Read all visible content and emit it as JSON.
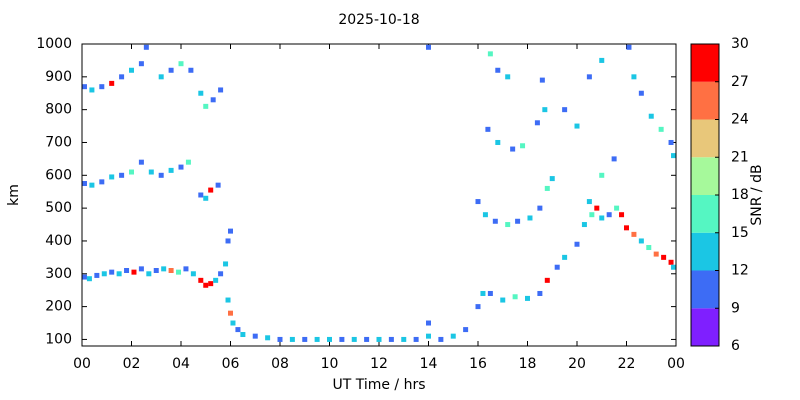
{
  "chart_data": {
    "type": "scatter",
    "title": "2025-10-18",
    "xlabel": "UT Time / hrs",
    "ylabel": "km",
    "xlim": [
      0,
      24
    ],
    "ylim": [
      80,
      1000
    ],
    "xticks": [
      {
        "value": 0,
        "label": "00"
      },
      {
        "value": 2,
        "label": "02"
      },
      {
        "value": 4,
        "label": "04"
      },
      {
        "value": 6,
        "label": "06"
      },
      {
        "value": 8,
        "label": "08"
      },
      10,
      12,
      14,
      16,
      18,
      20,
      22,
      {
        "value": 24,
        "label": "00"
      }
    ],
    "yticks": [
      100,
      200,
      300,
      400,
      500,
      600,
      700,
      800,
      900,
      1000
    ],
    "x": [
      0.1,
      0.3,
      0.6,
      0.9,
      1.2,
      1.5,
      1.8,
      2.1,
      2.4,
      2.7,
      3.0,
      3.3,
      3.6,
      3.9,
      4.2,
      4.5,
      4.8,
      5.0,
      5.2,
      5.4,
      5.6,
      5.8,
      5.9,
      6.0,
      5.9,
      6.0,
      6.1,
      6.3,
      6.5,
      7.0,
      7.5,
      8.0,
      8.5,
      9.0,
      9.5,
      10.0,
      10.5,
      11.0,
      11.5,
      12.0,
      12.5,
      13.0,
      13.5,
      14.0,
      14.0,
      14.5,
      15.0,
      15.5,
      16.0,
      16.2,
      16.5,
      17.0,
      17.5,
      18.0,
      18.5,
      18.8,
      19.2,
      19.5,
      20.0,
      20.3,
      20.6,
      20.8,
      21.0,
      21.3,
      21.6,
      21.8,
      22.0,
      22.3,
      22.6,
      22.9,
      23.2,
      23.5,
      23.8,
      23.9,
      0.1,
      0.4,
      0.8,
      1.2,
      1.6,
      2.0,
      2.4,
      2.8,
      3.2,
      3.6,
      4.0,
      4.3,
      4.8,
      5.0,
      5.2,
      5.5,
      0.1,
      0.4,
      0.8,
      1.2,
      1.6,
      2.0,
      2.4,
      2.6,
      3.2,
      3.6,
      4.0,
      4.4,
      4.8,
      5.0,
      5.3,
      5.6,
      16.0,
      16.3,
      16.7,
      17.2,
      17.6,
      18.1,
      18.5,
      18.8,
      19.0,
      16.4,
      16.8,
      17.4,
      17.8,
      18.4,
      18.7,
      16.5,
      16.8,
      17.2,
      18.6,
      19.5,
      20.0,
      20.5,
      21.0,
      21.5,
      21.0,
      20.5,
      22.1,
      22.3,
      22.6,
      23.0,
      23.4,
      23.8,
      23.9,
      14.0
    ],
    "y": [
      290,
      285,
      295,
      300,
      305,
      300,
      310,
      305,
      315,
      300,
      310,
      315,
      310,
      305,
      315,
      300,
      280,
      265,
      270,
      280,
      300,
      330,
      400,
      430,
      220,
      180,
      150,
      130,
      115,
      110,
      105,
      100,
      100,
      100,
      100,
      100,
      100,
      100,
      100,
      100,
      100,
      100,
      100,
      110,
      150,
      100,
      110,
      130,
      200,
      240,
      240,
      220,
      230,
      225,
      240,
      280,
      320,
      350,
      390,
      450,
      480,
      500,
      470,
      480,
      500,
      480,
      440,
      420,
      400,
      380,
      360,
      350,
      335,
      320,
      575,
      570,
      580,
      595,
      600,
      610,
      640,
      610,
      600,
      615,
      625,
      640,
      540,
      530,
      555,
      570,
      870,
      860,
      870,
      880,
      900,
      920,
      940,
      990,
      900,
      920,
      940,
      920,
      850,
      810,
      830,
      860,
      520,
      480,
      460,
      450,
      460,
      470,
      500,
      560,
      590,
      740,
      700,
      680,
      690,
      760,
      800,
      970,
      920,
      900,
      890,
      800,
      750,
      900,
      950,
      650,
      600,
      520,
      990,
      900,
      850,
      780,
      740,
      700,
      660,
      990
    ],
    "values": [
      10,
      13,
      10,
      12,
      10,
      14,
      10,
      27,
      10,
      13,
      10,
      12,
      24,
      16,
      10,
      13,
      27,
      28,
      27,
      13,
      10,
      14,
      10,
      10,
      13,
      24,
      14,
      10,
      13,
      10,
      13,
      10,
      13,
      10,
      12,
      13,
      10,
      14,
      10,
      13,
      10,
      12,
      10,
      13,
      10,
      10,
      13,
      10,
      10,
      13,
      10,
      13,
      16,
      13,
      10,
      27,
      10,
      13,
      10,
      13,
      16,
      27,
      13,
      10,
      16,
      28,
      27,
      24,
      13,
      16,
      24,
      27,
      28,
      13,
      10,
      13,
      10,
      13,
      10,
      16,
      10,
      13,
      10,
      13,
      10,
      16,
      10,
      13,
      27,
      10,
      10,
      13,
      10,
      27,
      10,
      13,
      10,
      10,
      13,
      10,
      16,
      10,
      13,
      16,
      10,
      10,
      10,
      13,
      10,
      16,
      10,
      13,
      10,
      16,
      13,
      10,
      13,
      10,
      16,
      10,
      13,
      16,
      10,
      13,
      10,
      10,
      13,
      10,
      13,
      10,
      16,
      13,
      10,
      13,
      10,
      13,
      16,
      10,
      13,
      10
    ],
    "colorbar": {
      "label": "SNR / dB",
      "zlim": [
        6,
        30
      ],
      "zticks": [
        6,
        9,
        12,
        15,
        18,
        21,
        24,
        27,
        30
      ],
      "colors": [
        "#7f1fff",
        "#3d6cf5",
        "#1bc6e4",
        "#55f6c2",
        "#a6f99b",
        "#e8c77a",
        "#ff7043",
        "#ff0000"
      ]
    }
  }
}
